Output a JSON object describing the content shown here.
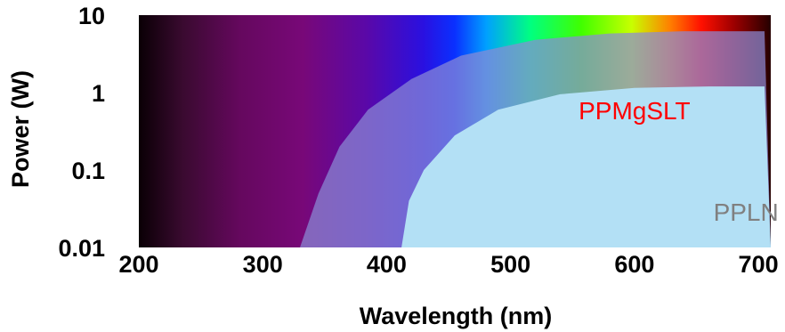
{
  "chart_data": {
    "type": "area",
    "title": "",
    "xlabel": "Wavelength (nm)",
    "ylabel": "Power (W)",
    "xlim": [
      200,
      710
    ],
    "ylim": [
      0.01,
      10
    ],
    "y_scale": "log",
    "x_ticks": [
      "200",
      "300",
      "400",
      "500",
      "600",
      "700"
    ],
    "x_tick_values": [
      200,
      300,
      400,
      500,
      600,
      700
    ],
    "y_ticks": [
      "10",
      "1",
      "0.1",
      "0.01"
    ],
    "y_tick_values": [
      10,
      1,
      0.1,
      0.01
    ],
    "background": "visible spectrum gradient (wavelength color)",
    "series": [
      {
        "name": "PPMgSLT",
        "label_color": "#ff0000",
        "fill": "#8a8ad6",
        "boundary": [
          {
            "x": 330,
            "y": 0.01
          },
          {
            "x": 345,
            "y": 0.05
          },
          {
            "x": 362,
            "y": 0.2
          },
          {
            "x": 385,
            "y": 0.6
          },
          {
            "x": 420,
            "y": 1.5
          },
          {
            "x": 460,
            "y": 3.0
          },
          {
            "x": 520,
            "y": 4.8
          },
          {
            "x": 580,
            "y": 5.8
          },
          {
            "x": 640,
            "y": 6.2
          },
          {
            "x": 705,
            "y": 6.2
          }
        ]
      },
      {
        "name": "PPLN",
        "label_color": "#808080",
        "fill": "#b3e0f5",
        "boundary": [
          {
            "x": 412,
            "y": 0.01
          },
          {
            "x": 418,
            "y": 0.04
          },
          {
            "x": 430,
            "y": 0.1
          },
          {
            "x": 455,
            "y": 0.28
          },
          {
            "x": 490,
            "y": 0.6
          },
          {
            "x": 540,
            "y": 0.95
          },
          {
            "x": 600,
            "y": 1.15
          },
          {
            "x": 660,
            "y": 1.2
          },
          {
            "x": 705,
            "y": 1.2
          }
        ]
      }
    ]
  }
}
